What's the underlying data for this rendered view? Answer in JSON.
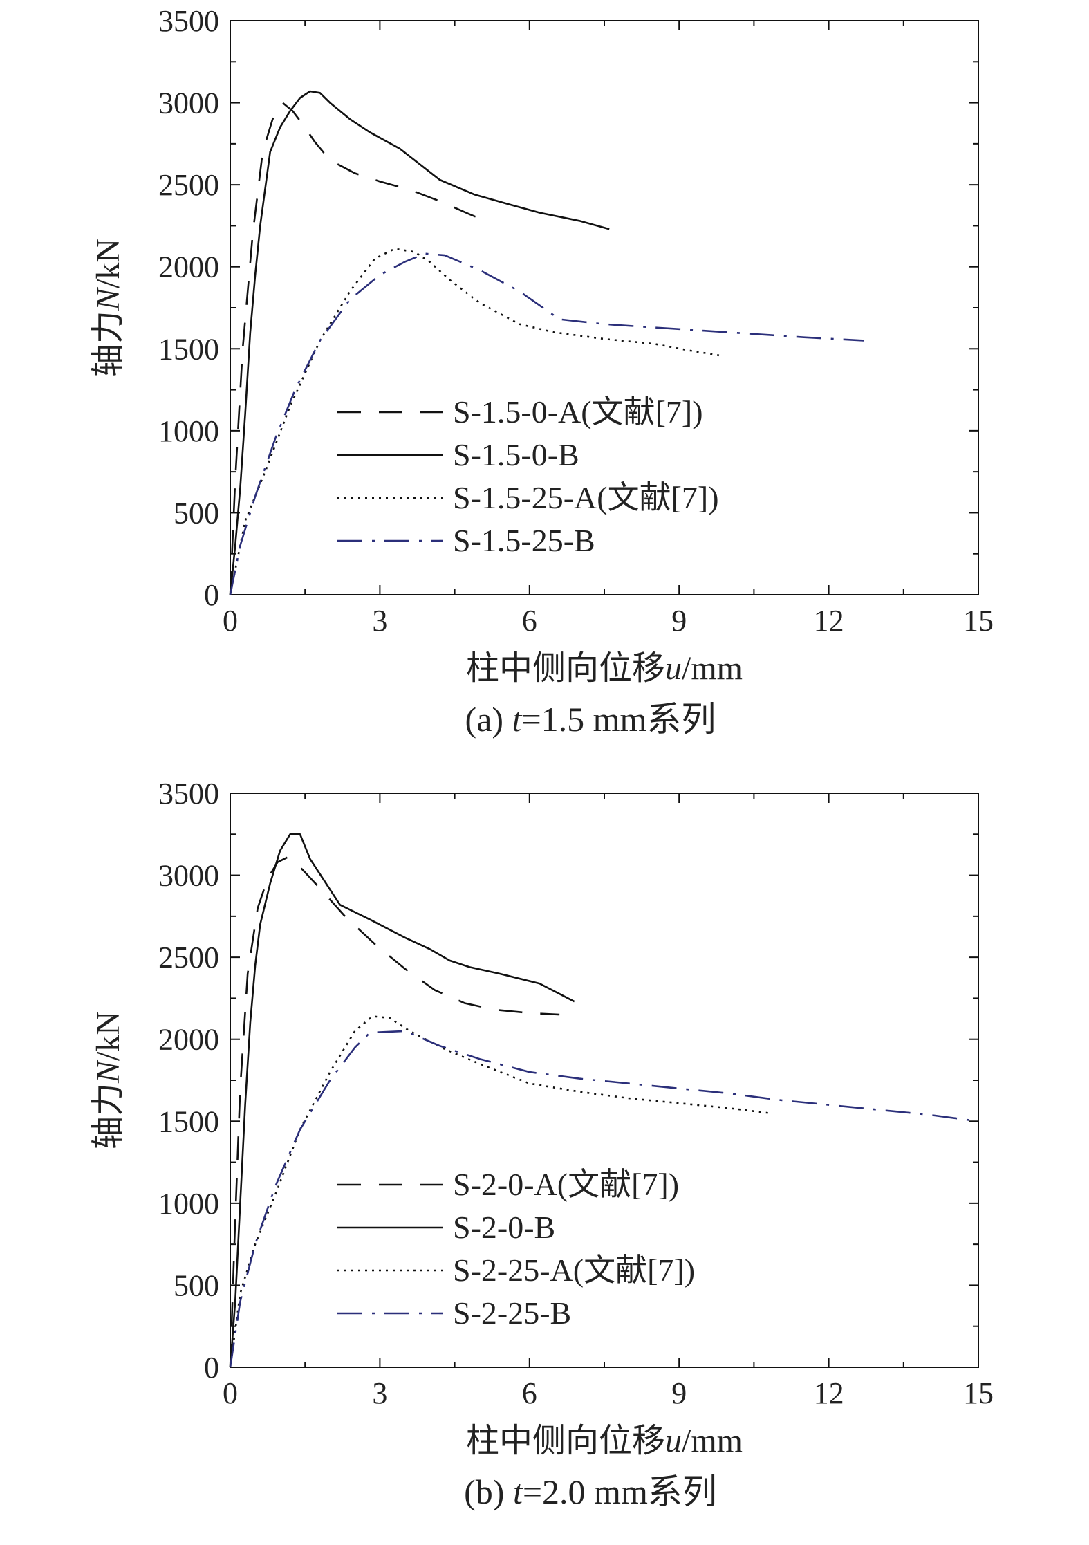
{
  "chart_data": [
    {
      "type": "line",
      "caption": "(a) t=1.5 mm系列",
      "caption_prefix": "(a) ",
      "caption_var": "t",
      "caption_suffix": "=1.5 mm系列",
      "xlabel": "柱中侧向位移u/mm",
      "xlabel_prefix": "柱中侧向位移",
      "xlabel_var": "u",
      "xlabel_suffix": "/mm",
      "ylabel": "轴力N/kN",
      "ylabel_prefix": "轴力",
      "ylabel_var": "N",
      "ylabel_suffix": "/kN",
      "xlim": [
        0,
        15
      ],
      "ylim": [
        0,
        3500
      ],
      "xticks": [
        0,
        3,
        6,
        9,
        12,
        15
      ],
      "yticks": [
        0,
        500,
        1000,
        1500,
        2000,
        2500,
        3000,
        3500
      ],
      "legend_position": "lower-center",
      "series": [
        {
          "name": "S-1.5-0-A(文献[7])",
          "style": "dashed",
          "color": "#111111",
          "x": [
            0,
            0.1,
            0.25,
            0.45,
            0.65,
            0.85,
            1.05,
            1.25,
            1.45,
            1.7,
            2.0,
            2.5,
            3.0,
            3.6,
            4.2,
            4.8,
            5.2
          ],
          "y": [
            0,
            700,
            1500,
            2200,
            2700,
            2900,
            3000,
            2950,
            2870,
            2760,
            2650,
            2570,
            2520,
            2470,
            2400,
            2320,
            2270
          ]
        },
        {
          "name": "S-1.5-0-B",
          "style": "solid",
          "color": "#111111",
          "x": [
            0,
            0.1,
            0.2,
            0.3,
            0.4,
            0.5,
            0.6,
            0.8,
            1.0,
            1.2,
            1.4,
            1.6,
            1.8,
            2.0,
            2.4,
            2.8,
            3.4,
            4.2,
            4.9,
            5.6,
            6.2,
            7.0,
            7.6
          ],
          "y": [
            0,
            300,
            650,
            1100,
            1600,
            1950,
            2250,
            2700,
            2850,
            2950,
            3030,
            3070,
            3060,
            3000,
            2900,
            2820,
            2720,
            2530,
            2440,
            2380,
            2330,
            2280,
            2230
          ]
        },
        {
          "name": "S-1.5-25-A(文献[7])",
          "style": "dotted",
          "color": "#111111",
          "x": [
            0,
            0.3,
            0.7,
            1.2,
            1.8,
            2.4,
            2.9,
            3.3,
            3.7,
            4.0,
            4.4,
            5.0,
            5.8,
            6.5,
            7.5,
            8.5,
            9.2,
            9.8
          ],
          "y": [
            0,
            450,
            750,
            1150,
            1550,
            1850,
            2050,
            2110,
            2090,
            2030,
            1920,
            1780,
            1650,
            1600,
            1560,
            1530,
            1490,
            1460
          ]
        },
        {
          "name": "S-1.5-25-B",
          "style": "dashdot",
          "color": "#2b2f7a",
          "x": [
            0,
            0.2,
            0.5,
            0.9,
            1.3,
            1.8,
            2.4,
            3.0,
            3.5,
            3.9,
            4.3,
            5.0,
            5.8,
            6.6,
            7.5,
            8.5,
            9.5,
            10.5,
            11.5,
            12.7
          ],
          "y": [
            0,
            300,
            600,
            950,
            1250,
            1550,
            1800,
            1950,
            2030,
            2080,
            2070,
            1980,
            1850,
            1680,
            1650,
            1630,
            1610,
            1590,
            1570,
            1550
          ]
        }
      ]
    },
    {
      "type": "line",
      "caption": "(b) t=2.0 mm系列",
      "caption_prefix": "(b) ",
      "caption_var": "t",
      "caption_suffix": "=2.0 mm系列",
      "xlabel": "柱中侧向位移u/mm",
      "xlabel_prefix": "柱中侧向位移",
      "xlabel_var": "u",
      "xlabel_suffix": "/mm",
      "ylabel": "轴力N/kN",
      "ylabel_prefix": "轴力",
      "ylabel_var": "N",
      "ylabel_suffix": "/kN",
      "xlim": [
        0,
        15
      ],
      "ylim": [
        0,
        3500
      ],
      "xticks": [
        0,
        3,
        6,
        9,
        12,
        15
      ],
      "yticks": [
        0,
        500,
        1000,
        1500,
        2000,
        2500,
        3000,
        3500
      ],
      "legend_position": "lower-center",
      "series": [
        {
          "name": "S-2-0-A(文献[7])",
          "style": "dashed",
          "color": "#111111",
          "x": [
            0,
            0.1,
            0.2,
            0.35,
            0.55,
            0.75,
            0.95,
            1.15,
            1.4,
            1.8,
            2.3,
            2.9,
            3.5,
            4.1,
            4.7,
            5.3,
            6.0,
            6.6
          ],
          "y": [
            0,
            900,
            1700,
            2400,
            2800,
            2980,
            3080,
            3110,
            3050,
            2920,
            2750,
            2580,
            2430,
            2300,
            2220,
            2180,
            2160,
            2150
          ]
        },
        {
          "name": "S-2-0-B",
          "style": "solid",
          "color": "#111111",
          "x": [
            0,
            0.1,
            0.2,
            0.3,
            0.4,
            0.5,
            0.6,
            0.8,
            1.0,
            1.2,
            1.4,
            1.6,
            2.2,
            2.8,
            3.5,
            4.0,
            4.4,
            4.8,
            5.4,
            6.2,
            6.9
          ],
          "y": [
            0,
            400,
            1000,
            1600,
            2100,
            2450,
            2700,
            2950,
            3150,
            3250,
            3250,
            3100,
            2820,
            2730,
            2620,
            2550,
            2480,
            2440,
            2400,
            2340,
            2230
          ]
        },
        {
          "name": "S-2-25-A(文献[7])",
          "style": "dotted",
          "color": "#111111",
          "x": [
            0,
            0.2,
            0.5,
            0.9,
            1.4,
            2.0,
            2.5,
            2.85,
            3.2,
            3.6,
            4.3,
            5.0,
            6.0,
            7.0,
            8.0,
            9.0,
            10.0,
            10.8
          ],
          "y": [
            0,
            450,
            750,
            1050,
            1450,
            1800,
            2050,
            2140,
            2130,
            2050,
            1940,
            1850,
            1730,
            1680,
            1640,
            1610,
            1580,
            1550
          ]
        },
        {
          "name": "S-2-25-B",
          "style": "dashdot",
          "color": "#2b2f7a",
          "x": [
            0,
            0.2,
            0.5,
            0.9,
            1.4,
            2.0,
            2.5,
            2.8,
            3.5,
            4.2,
            5.0,
            6.0,
            7.0,
            8.0,
            9.0,
            10.0,
            11.0,
            12.0,
            13.0,
            14.0,
            15.0
          ],
          "y": [
            0,
            400,
            750,
            1100,
            1450,
            1750,
            1950,
            2040,
            2050,
            1960,
            1880,
            1800,
            1760,
            1730,
            1700,
            1670,
            1630,
            1600,
            1570,
            1540,
            1500
          ]
        }
      ]
    }
  ]
}
